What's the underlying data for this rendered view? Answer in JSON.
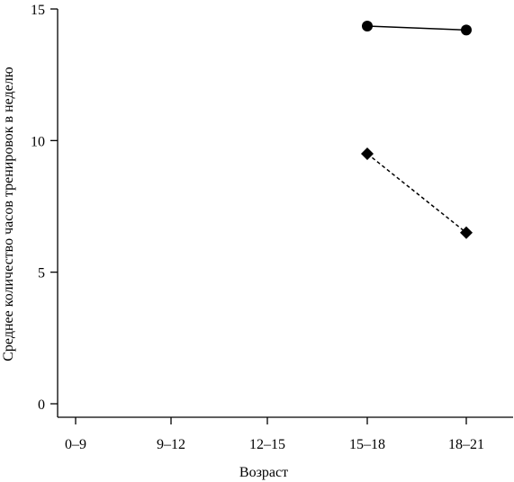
{
  "chart_data": {
    "type": "line",
    "title": "",
    "xlabel": "Возраст",
    "ylabel": "Среднее количество часов тренировок в неделю",
    "categories": [
      "0–9",
      "9–12",
      "12–15",
      "15–18",
      "18–21"
    ],
    "ylim": [
      0,
      15
    ],
    "yticks": [
      0,
      5,
      10,
      15
    ],
    "grid": false,
    "legend": "none",
    "series": [
      {
        "marker": "circle",
        "line_style": "solid",
        "color": "#000000",
        "values": [
          null,
          null,
          null,
          14.35,
          14.2
        ]
      },
      {
        "marker": "diamond",
        "line_style": "dashed",
        "color": "#000000",
        "values": [
          null,
          null,
          null,
          9.5,
          6.5
        ]
      }
    ]
  }
}
